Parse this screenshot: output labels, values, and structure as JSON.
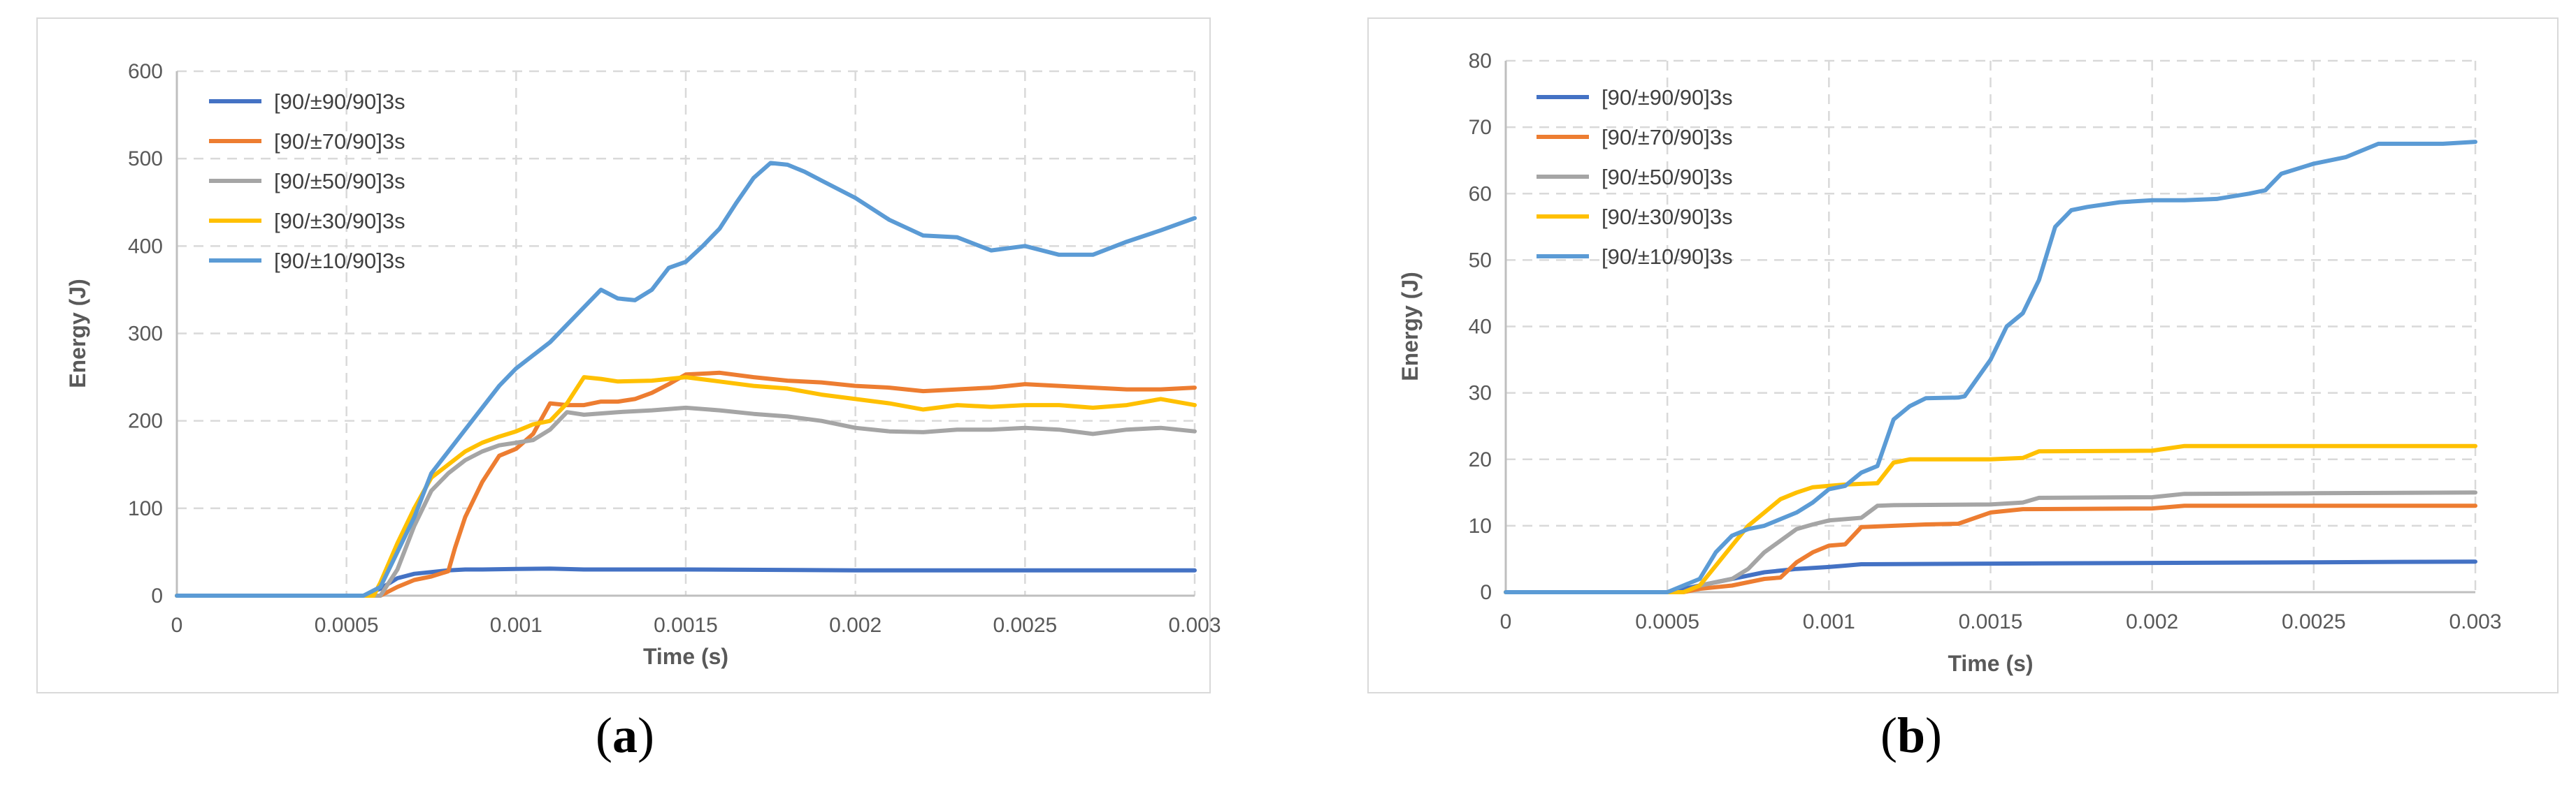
{
  "chart_data": [
    {
      "type": "line",
      "panel_label": "(a)",
      "panel_letter": "a",
      "title": "",
      "xlabel": "Time (s)",
      "ylabel": "Energy (J)",
      "xlim": [
        0,
        0.003
      ],
      "ylim": [
        0,
        600
      ],
      "xticks": [
        0,
        0.0005,
        0.001,
        0.0015,
        0.002,
        0.0025,
        0.003
      ],
      "xtick_labels": [
        "0",
        "0.0005",
        "0.001",
        "0.0015",
        "0.002",
        "0.0025",
        "0.003"
      ],
      "yticks": [
        0,
        100,
        200,
        300,
        400,
        500,
        600
      ],
      "ytick_labels": [
        "0",
        "100",
        "200",
        "300",
        "400",
        "500",
        "600"
      ],
      "grid": true,
      "legend": "top-left",
      "series": [
        {
          "name": "[90/±90/90]3s",
          "color": "#4472C4",
          "x": [
            0,
            0.00055,
            0.0006,
            0.00065,
            0.0007,
            0.00075,
            0.0008,
            0.00085,
            0.0009,
            0.001,
            0.0011,
            0.0012,
            0.0015,
            0.002,
            0.0025,
            0.003
          ],
          "y": [
            0,
            0,
            8,
            20,
            25,
            27,
            29,
            30,
            30,
            30.5,
            31,
            30,
            30,
            29,
            29,
            29
          ]
        },
        {
          "name": "[90/±70/90]3s",
          "color": "#ED7D31",
          "x": [
            0,
            0.0006,
            0.00065,
            0.0007,
            0.00075,
            0.0008,
            0.00082,
            0.00085,
            0.0009,
            0.00095,
            0.001,
            0.00105,
            0.0011,
            0.00115,
            0.0012,
            0.00125,
            0.0013,
            0.00135,
            0.0014,
            0.00145,
            0.0015,
            0.0016,
            0.0017,
            0.0018,
            0.0019,
            0.002,
            0.0021,
            0.0022,
            0.0023,
            0.0024,
            0.0025,
            0.0026,
            0.0027,
            0.0028,
            0.0029,
            0.003
          ],
          "y": [
            0,
            0,
            10,
            18,
            22,
            28,
            55,
            90,
            130,
            160,
            168,
            185,
            220,
            218,
            218,
            222,
            222,
            225,
            232,
            242,
            253,
            255,
            250,
            246,
            244,
            240,
            238,
            234,
            236,
            238,
            242,
            240,
            238,
            236,
            236,
            238
          ]
        },
        {
          "name": "[90/±50/90]3s",
          "color": "#A5A5A5",
          "x": [
            0,
            0.0006,
            0.00065,
            0.0007,
            0.00075,
            0.0008,
            0.00085,
            0.0009,
            0.00095,
            0.001,
            0.00105,
            0.0011,
            0.00115,
            0.0012,
            0.0013,
            0.0014,
            0.0015,
            0.0016,
            0.0017,
            0.0018,
            0.0019,
            0.002,
            0.0021,
            0.0022,
            0.0023,
            0.0024,
            0.0025,
            0.0026,
            0.0027,
            0.0028,
            0.0029,
            0.003
          ],
          "y": [
            0,
            0,
            30,
            80,
            120,
            140,
            155,
            165,
            172,
            175,
            178,
            190,
            210,
            207,
            210,
            212,
            215,
            212,
            208,
            205,
            200,
            192,
            188,
            187,
            190,
            190,
            192,
            190,
            185,
            190,
            192,
            188
          ]
        },
        {
          "name": "[90/±30/90]3s",
          "color": "#FFC000",
          "x": [
            0,
            0.00058,
            0.0006,
            0.00065,
            0.0007,
            0.00075,
            0.0008,
            0.00085,
            0.0009,
            0.00095,
            0.001,
            0.00105,
            0.0011,
            0.00115,
            0.0012,
            0.00125,
            0.0013,
            0.0014,
            0.0015,
            0.0016,
            0.0017,
            0.0018,
            0.0019,
            0.002,
            0.0021,
            0.0022,
            0.0023,
            0.0024,
            0.0025,
            0.0026,
            0.0027,
            0.0028,
            0.0029,
            0.003
          ],
          "y": [
            0,
            0,
            15,
            60,
            100,
            135,
            150,
            165,
            175,
            182,
            188,
            196,
            200,
            220,
            250,
            248,
            245,
            246,
            250,
            245,
            240,
            237,
            230,
            225,
            220,
            213,
            218,
            216,
            218,
            218,
            215,
            218,
            225,
            218
          ]
        },
        {
          "name": "[90/±10/90]3s",
          "color": "#5B9BD5",
          "x": [
            0,
            0.00055,
            0.0006,
            0.00065,
            0.0007,
            0.00075,
            0.0008,
            0.00085,
            0.0009,
            0.00095,
            0.001,
            0.00105,
            0.0011,
            0.00115,
            0.0012,
            0.00125,
            0.0013,
            0.00135,
            0.0014,
            0.00145,
            0.0015,
            0.00155,
            0.0016,
            0.00165,
            0.0017,
            0.00175,
            0.0018,
            0.00185,
            0.0019,
            0.002,
            0.0021,
            0.0022,
            0.0023,
            0.0024,
            0.0025,
            0.0026,
            0.0027,
            0.0028,
            0.0029,
            0.003
          ],
          "y": [
            0,
            0,
            10,
            50,
            90,
            140,
            165,
            190,
            215,
            240,
            260,
            275,
            290,
            310,
            330,
            350,
            340,
            338,
            350,
            375,
            382,
            400,
            420,
            450,
            478,
            495,
            493,
            485,
            475,
            455,
            430,
            412,
            410,
            395,
            400,
            390,
            390,
            405,
            418,
            432
          ]
        }
      ]
    },
    {
      "type": "line",
      "panel_label": "(b)",
      "panel_letter": "b",
      "title": "",
      "xlabel": "Time (s)",
      "ylabel": "Energy (J)",
      "xlim": [
        0,
        0.003
      ],
      "ylim": [
        0,
        80
      ],
      "xticks": [
        0,
        0.0005,
        0.001,
        0.0015,
        0.002,
        0.0025,
        0.003
      ],
      "xtick_labels": [
        "0",
        "0.0005",
        "0.001",
        "0.0015",
        "0.002",
        "0.0025",
        "0.003"
      ],
      "yticks": [
        0,
        10,
        20,
        30,
        40,
        50,
        60,
        70,
        80
      ],
      "ytick_labels": [
        "0",
        "10",
        "20",
        "30",
        "40",
        "50",
        "60",
        "70",
        "80"
      ],
      "grid": true,
      "legend": "top-left",
      "series": [
        {
          "name": "[90/±90/90]3s",
          "color": "#4472C4",
          "x": [
            0,
            0.0005,
            0.0006,
            0.0007,
            0.0008,
            0.0009,
            0.001,
            0.00105,
            0.0011,
            0.0015,
            0.002,
            0.0025,
            0.003
          ],
          "y": [
            0,
            0,
            1,
            2,
            3,
            3.5,
            3.8,
            4,
            4.2,
            4.3,
            4.4,
            4.5,
            4.6
          ]
        },
        {
          "name": "[90/±70/90]3s",
          "color": "#ED7D31",
          "x": [
            0,
            0.00055,
            0.0006,
            0.0007,
            0.0008,
            0.00085,
            0.0009,
            0.00095,
            0.001,
            0.00105,
            0.0011,
            0.0012,
            0.0013,
            0.0014,
            0.0015,
            0.0016,
            0.002,
            0.0021,
            0.0025,
            0.003
          ],
          "y": [
            0,
            0,
            0.5,
            1,
            2,
            2.2,
            4.5,
            6,
            7,
            7.2,
            9.8,
            10,
            10.2,
            10.3,
            12,
            12.5,
            12.6,
            13,
            13,
            13
          ]
        },
        {
          "name": "[90/±50/90]3s",
          "color": "#A5A5A5",
          "x": [
            0,
            0.00055,
            0.0006,
            0.0007,
            0.00075,
            0.0008,
            0.0009,
            0.00095,
            0.001,
            0.00105,
            0.0011,
            0.00115,
            0.0012,
            0.0015,
            0.0016,
            0.00165,
            0.002,
            0.0021,
            0.0025,
            0.003
          ],
          "y": [
            0,
            0,
            1,
            2,
            3.5,
            6,
            9.5,
            10.2,
            10.8,
            11,
            11.2,
            13,
            13.1,
            13.2,
            13.5,
            14.2,
            14.3,
            14.8,
            14.9,
            15
          ]
        },
        {
          "name": "[90/±30/90]3s",
          "color": "#FFC000",
          "x": [
            0,
            0.00055,
            0.0006,
            0.00065,
            0.0007,
            0.00075,
            0.0008,
            0.00085,
            0.0009,
            0.00095,
            0.001,
            0.00105,
            0.0011,
            0.00115,
            0.0012,
            0.00125,
            0.0015,
            0.0016,
            0.00165,
            0.002,
            0.0021,
            0.0025,
            0.003
          ],
          "y": [
            0,
            0,
            1,
            4,
            7,
            10,
            12,
            14,
            15,
            15.8,
            16,
            16.2,
            16.3,
            16.4,
            19.5,
            20,
            20,
            20.2,
            21.2,
            21.3,
            22,
            22,
            22
          ]
        },
        {
          "name": "[90/±10/90]3s",
          "color": "#5B9BD5",
          "x": [
            0,
            0.0005,
            0.0006,
            0.00065,
            0.0007,
            0.00075,
            0.0008,
            0.00085,
            0.0009,
            0.00095,
            0.001,
            0.00105,
            0.0011,
            0.00115,
            0.0012,
            0.00125,
            0.0013,
            0.0014,
            0.00142,
            0.0015,
            0.00155,
            0.0016,
            0.00165,
            0.0017,
            0.00175,
            0.0018,
            0.0019,
            0.002,
            0.0021,
            0.0022,
            0.0023,
            0.00235,
            0.0024,
            0.0025,
            0.0026,
            0.0027,
            0.0028,
            0.0029,
            0.003
          ],
          "y": [
            0,
            0,
            2,
            6,
            8.5,
            9.5,
            10,
            11,
            12,
            13.5,
            15.5,
            16,
            18,
            19,
            26,
            28,
            29.2,
            29.3,
            29.5,
            35,
            40,
            42,
            47,
            55,
            57.5,
            58,
            58.7,
            59,
            59,
            59.2,
            60,
            60.5,
            63,
            64.5,
            65.5,
            67.5,
            67.5,
            67.5,
            67.8
          ]
        }
      ]
    }
  ]
}
